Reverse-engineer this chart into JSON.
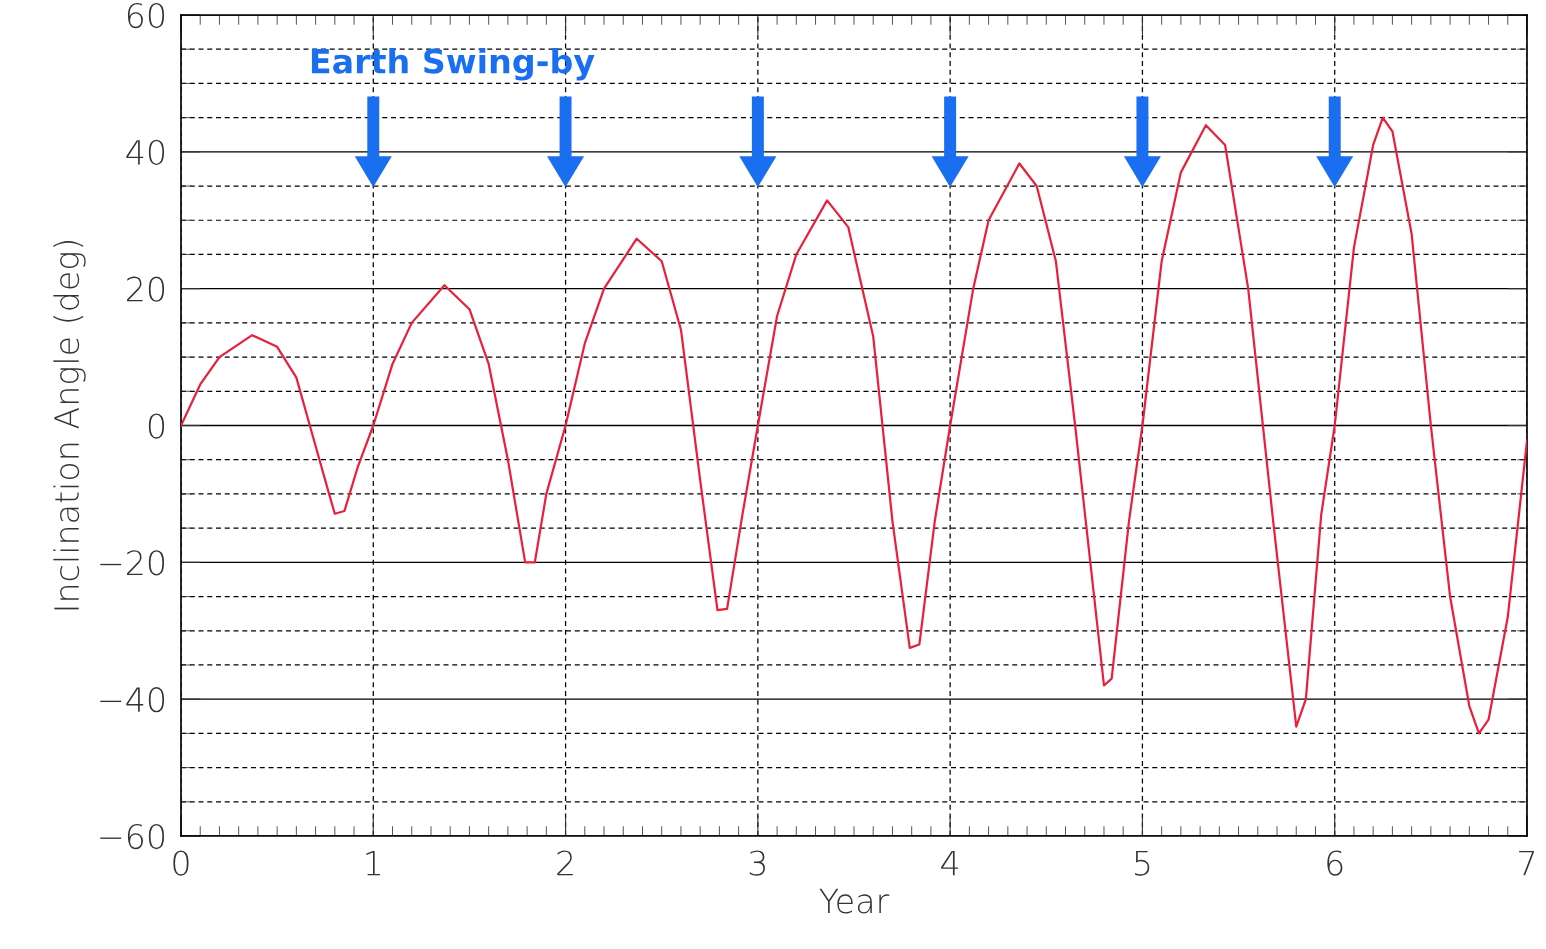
{
  "chart_data": {
    "type": "line",
    "xlabel": "Year",
    "ylabel": "Inclination Angle (deg)",
    "xlim": [
      0,
      7
    ],
    "ylim": [
      -60,
      60
    ],
    "xticks": [
      0,
      1,
      2,
      3,
      4,
      5,
      6,
      7
    ],
    "yticks": [
      -60,
      -40,
      -20,
      0,
      20,
      40,
      60
    ],
    "grid": true,
    "marker": "none",
    "line_style": "solid",
    "annotations": [
      "Earth Swing-by"
    ],
    "series": [
      {
        "color": "#e8203c",
        "x": [
          0,
          0.1,
          0.2,
          0.37,
          0.5,
          0.6,
          0.7,
          0.77,
          0.8,
          0.85,
          0.92,
          1.0,
          1.1,
          1.2,
          1.37,
          1.5,
          1.6,
          1.7,
          1.79,
          1.84,
          1.9,
          2.0,
          2.1,
          2.2,
          2.37,
          2.5,
          2.6,
          2.7,
          2.79,
          2.84,
          2.92,
          3.0,
          3.1,
          3.2,
          3.36,
          3.47,
          3.6,
          3.7,
          3.79,
          3.84,
          3.92,
          4.0,
          4.12,
          4.2,
          4.36,
          4.45,
          4.55,
          4.65,
          4.8,
          4.84,
          4.93,
          5.0,
          5.1,
          5.2,
          5.33,
          5.43,
          5.55,
          5.68,
          5.8,
          5.85,
          5.93,
          6.0,
          6.1,
          6.2,
          6.25,
          6.3,
          6.4,
          6.5,
          6.6,
          6.7,
          6.75,
          6.8,
          6.9,
          7.0
        ],
        "values": [
          0,
          6,
          10,
          13.2,
          11.5,
          7,
          -3,
          -10,
          -12.9,
          -12.5,
          -6,
          0,
          9,
          15,
          20.5,
          17,
          9,
          -5,
          -20,
          -20,
          -10,
          0,
          12,
          20,
          27.3,
          24,
          14,
          -8,
          -27,
          -26.8,
          -13,
          0,
          16,
          25,
          32.9,
          29,
          13,
          -14,
          -32.5,
          -32,
          -14,
          0,
          20,
          30,
          38.3,
          35,
          24,
          0,
          -38,
          -37,
          -14,
          0,
          24,
          37,
          43.9,
          41,
          20,
          -14,
          -44,
          -40,
          -13,
          0,
          26,
          41,
          45,
          43,
          28,
          0,
          -25,
          -41,
          -45,
          -43,
          -28,
          -2.2
        ]
      }
    ]
  }
}
